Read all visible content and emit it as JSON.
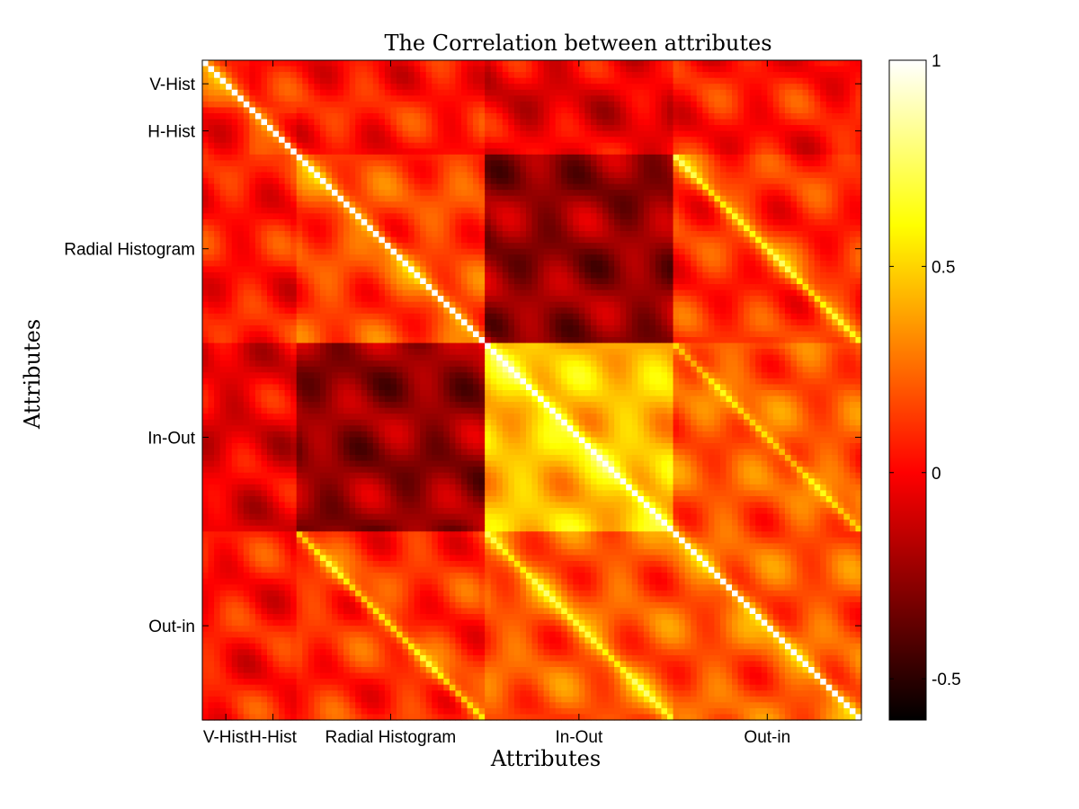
{
  "chart_data": {
    "type": "heatmap",
    "title": "The Correlation between attributes",
    "xlabel": "Attributes",
    "ylabel": "Attributes",
    "colormap": "hot",
    "color_range": [
      -0.6,
      1
    ],
    "colorbar_ticks": [
      {
        "value": 1,
        "label": "1"
      },
      {
        "value": 0.5,
        "label": "0.5"
      },
      {
        "value": 0,
        "label": "0"
      },
      {
        "value": -0.5,
        "label": "-0.5"
      }
    ],
    "groups": [
      {
        "label": "V-Hist",
        "size": 8
      },
      {
        "label": "H-Hist",
        "size": 8
      },
      {
        "label": "Radial Histogram",
        "size": 32
      },
      {
        "label": "In-Out",
        "size": 32
      },
      {
        "label": "Out-in",
        "size": 32
      }
    ],
    "block_means": [
      [
        0.1,
        0.05,
        0.05,
        -0.05,
        0.05
      ],
      [
        0.05,
        0.1,
        0.05,
        -0.05,
        0.05
      ],
      [
        0.05,
        0.05,
        0.15,
        -0.25,
        0.1
      ],
      [
        -0.05,
        -0.05,
        -0.25,
        0.45,
        0.2
      ],
      [
        0.05,
        0.05,
        0.1,
        0.2,
        0.2
      ]
    ],
    "diagonal_value": 1,
    "secondary_diagonals": [
      {
        "between": [
          "Radial Histogram",
          "Out-in"
        ],
        "value": 0.6
      },
      {
        "between": [
          "In-Out",
          "Out-in"
        ],
        "value": 0.6
      }
    ]
  }
}
